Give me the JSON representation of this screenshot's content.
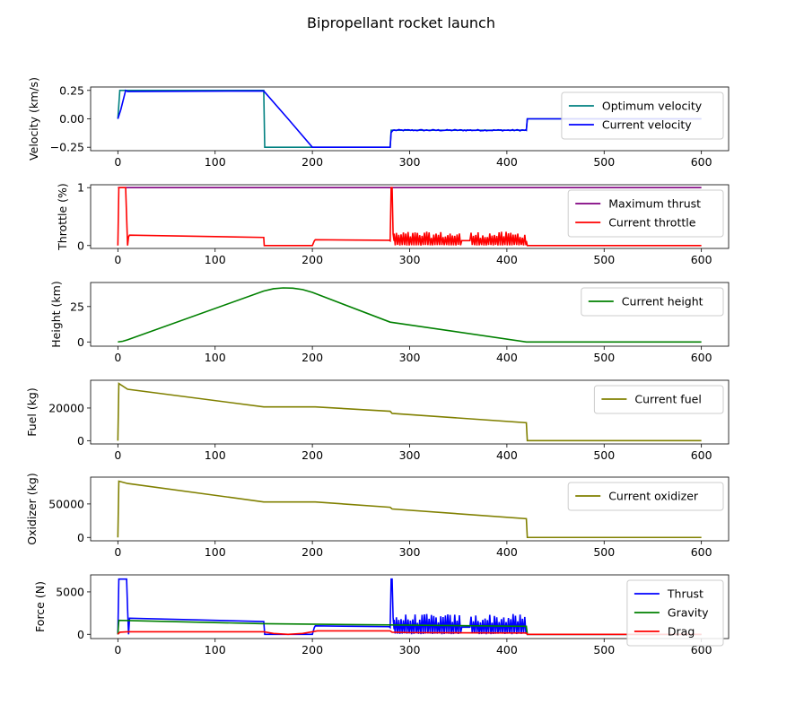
{
  "figure": {
    "title": "Bipropellant rocket launch"
  },
  "colors": {
    "teal": "#008080",
    "blue": "#0000ff",
    "purple": "#800080",
    "red": "#ff0000",
    "green": "#008000",
    "olive": "#808000"
  },
  "chart_data": [
    {
      "type": "line",
      "ylabel": "Velocity (km/s)",
      "xlim": [
        -28,
        628
      ],
      "ylim": [
        -0.28,
        0.28
      ],
      "xticks": [
        0,
        100,
        200,
        300,
        400,
        500,
        600
      ],
      "yticks": [
        0.25,
        0.0,
        -0.25
      ],
      "ytick_labels": [
        "0.25",
        "0.00",
        "−0.25"
      ],
      "legend_position": "top-right",
      "series": [
        {
          "name": "Optimum  velocity",
          "color": "#008080",
          "x": [
            0,
            2,
            150,
            151,
            200,
            280,
            281,
            420,
            421,
            600
          ],
          "y": [
            0,
            0.25,
            0.25,
            -0.25,
            -0.25,
            -0.25,
            -0.1,
            -0.1,
            0,
            0
          ]
        },
        {
          "name": "Current velocity",
          "color": "#0000ff",
          "x": [
            0,
            3,
            8,
            10,
            150,
            175,
            200,
            203,
            280,
            281,
            283,
            420,
            421,
            600
          ],
          "y": [
            0,
            0.08,
            0.25,
            0.24,
            0.245,
            0.0,
            -0.25,
            -0.25,
            -0.25,
            -0.12,
            -0.1,
            -0.1,
            0,
            0
          ],
          "noise": {
            "from": 283,
            "to": 420,
            "amplitude": 0.006
          }
        }
      ]
    },
    {
      "type": "line",
      "ylabel": "Throttle (%)",
      "xlim": [
        -28,
        628
      ],
      "ylim": [
        -0.05,
        1.05
      ],
      "xticks": [
        0,
        100,
        200,
        300,
        400,
        500,
        600
      ],
      "yticks": [
        1,
        0
      ],
      "ytick_labels": [
        "1",
        "0"
      ],
      "legend_position": "top-right",
      "series": [
        {
          "name": "Maximum thrust",
          "color": "#800080",
          "x": [
            0,
            600
          ],
          "y": [
            1,
            1
          ]
        },
        {
          "name": "Current throttle",
          "color": "#ff0000",
          "x": [
            0,
            1,
            8,
            9,
            10,
            11,
            12,
            150,
            150.5,
            200,
            202,
            203,
            279,
            280,
            281,
            282,
            283,
            284,
            420,
            421,
            600
          ],
          "y": [
            0,
            1,
            1,
            0.5,
            0,
            0.15,
            0.18,
            0.14,
            0,
            0,
            0.08,
            0.1,
            0.09,
            0.08,
            1,
            1,
            0.2,
            0.08,
            0.08,
            0,
            0
          ],
          "oscillation": {
            "from": 284,
            "to": 420,
            "low": 0.0,
            "high": 0.24,
            "gaps": [
              [
                353,
                362
              ]
            ]
          }
        }
      ]
    },
    {
      "type": "line",
      "ylabel": "Height (km)",
      "xlim": [
        -28,
        628
      ],
      "ylim": [
        -3,
        42
      ],
      "xticks": [
        0,
        100,
        200,
        300,
        400,
        500,
        600
      ],
      "yticks": [
        25,
        0
      ],
      "ytick_labels": [
        "25",
        "0"
      ],
      "legend_position": "top-right",
      "series": [
        {
          "name": "Current height",
          "color": "#008000",
          "x": [
            0,
            5,
            10,
            150,
            160,
            170,
            180,
            190,
            200,
            280,
            420,
            600
          ],
          "y": [
            0,
            0.5,
            1.5,
            36,
            37.6,
            38.2,
            38,
            37,
            35,
            14,
            0,
            0
          ]
        }
      ]
    },
    {
      "type": "line",
      "ylabel": "Fuel (kg)",
      "xlim": [
        -28,
        628
      ],
      "ylim": [
        -2000,
        37000
      ],
      "xticks": [
        0,
        100,
        200,
        300,
        400,
        500,
        600
      ],
      "yticks": [
        20000,
        0
      ],
      "ytick_labels": [
        "20000",
        "0"
      ],
      "legend_position": "top-right",
      "series": [
        {
          "name": "Current fuel",
          "color": "#808000",
          "x": [
            0,
            1,
            10,
            150,
            203,
            280,
            282,
            420,
            421,
            600
          ],
          "y": [
            0,
            35000,
            31500,
            20700,
            20700,
            18000,
            16700,
            11000,
            0,
            0
          ]
        }
      ]
    },
    {
      "type": "line",
      "ylabel": "Oxidizer (kg)",
      "xlim": [
        -28,
        628
      ],
      "ylim": [
        -5000,
        90000
      ],
      "xticks": [
        0,
        100,
        200,
        300,
        400,
        500,
        600
      ],
      "yticks": [
        50000,
        0
      ],
      "ytick_labels": [
        "50000",
        "0"
      ],
      "legend_position": "top-right",
      "series": [
        {
          "name": "Current oxidizer",
          "color": "#808000",
          "x": [
            0,
            1,
            10,
            150,
            203,
            280,
            282,
            420,
            421,
            600
          ],
          "y": [
            0,
            84000,
            80500,
            53000,
            53000,
            45000,
            42500,
            28000,
            0,
            0
          ]
        }
      ]
    },
    {
      "type": "line",
      "ylabel": "Force (N)",
      "xlim": [
        -28,
        628
      ],
      "ylim": [
        -500,
        7000
      ],
      "xticks": [
        0,
        100,
        200,
        300,
        400,
        500,
        600
      ],
      "yticks": [
        5000,
        0
      ],
      "ytick_labels": [
        "5000",
        "0"
      ],
      "legend_position": "top-right",
      "series": [
        {
          "name": "Thrust",
          "color": "#0000ff",
          "x": [
            0,
            1,
            9,
            10,
            11,
            12,
            150,
            151,
            200,
            202,
            203,
            279,
            280,
            281,
            282,
            283,
            284,
            420,
            421,
            600
          ],
          "y": [
            0,
            6500,
            6500,
            3000,
            0,
            1900,
            1500,
            0,
            0,
            800,
            1000,
            900,
            800,
            6500,
            6500,
            2000,
            600,
            600,
            0,
            0
          ],
          "oscillation": {
            "from": 284,
            "to": 420,
            "low": 0,
            "high": 2400,
            "gaps": [
              [
                353,
                362
              ]
            ]
          }
        },
        {
          "name": "Gravity",
          "color": "#008000",
          "x": [
            0,
            1,
            150,
            280,
            420,
            421,
            600
          ],
          "y": [
            0,
            1650,
            1250,
            1100,
            950,
            0,
            0
          ]
        },
        {
          "name": "Drag",
          "color": "#ff0000",
          "x": [
            0,
            2,
            10,
            150,
            160,
            175,
            190,
            200,
            205,
            280,
            282,
            300,
            420,
            421,
            600
          ],
          "y": [
            0,
            250,
            300,
            300,
            100,
            0,
            100,
            300,
            400,
            400,
            250,
            200,
            150,
            0,
            0
          ]
        }
      ]
    }
  ]
}
